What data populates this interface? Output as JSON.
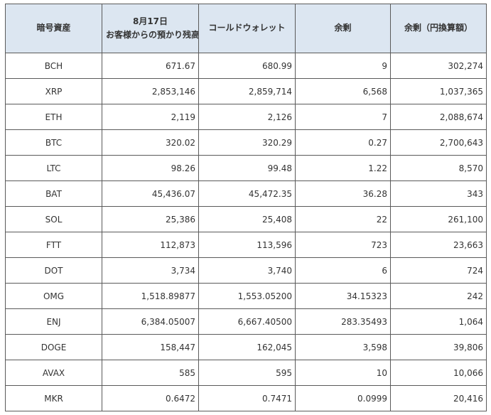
{
  "table": {
    "headers": [
      {
        "lines": [
          "暗号資産"
        ]
      },
      {
        "lines": [
          "8月17日",
          "お客様からの預かり残高"
        ]
      },
      {
        "lines": [
          "コールドウォレット"
        ]
      },
      {
        "lines": [
          "余剰"
        ]
      },
      {
        "lines": [
          "余剰（円換算額）"
        ]
      }
    ],
    "rows": [
      [
        "BCH",
        "671.67",
        "680.99",
        "9",
        "302,274"
      ],
      [
        "XRP",
        "2,853,146",
        "2,859,714",
        "6,568",
        "1,037,365"
      ],
      [
        "ETH",
        "2,119",
        "2,126",
        "7",
        "2,088,674"
      ],
      [
        "BTC",
        "320.02",
        "320.29",
        "0.27",
        "2,700,643"
      ],
      [
        "LTC",
        "98.26",
        "99.48",
        "1.22",
        "8,570"
      ],
      [
        "BAT",
        "45,436.07",
        "45,472.35",
        "36.28",
        "343"
      ],
      [
        "SOL",
        "25,386",
        "25,408",
        "22",
        "261,100"
      ],
      [
        "FTT",
        "112,873",
        "113,596",
        "723",
        "23,663"
      ],
      [
        "DOT",
        "3,734",
        "3,740",
        "6",
        "724"
      ],
      [
        "OMG",
        "1,518.89877",
        "1,553.05200",
        "34.15323",
        "242"
      ],
      [
        "ENJ",
        "6,384.05007",
        "6,667.40500",
        "283.35493",
        "1,064"
      ],
      [
        "DOGE",
        "158,447",
        "162,045",
        "3,598",
        "39,806"
      ],
      [
        "AVAX",
        "585",
        "595",
        "10",
        "10,066"
      ],
      [
        "MKR",
        "0.6472",
        "0.7471",
        "0.0999",
        "20,416"
      ]
    ]
  }
}
